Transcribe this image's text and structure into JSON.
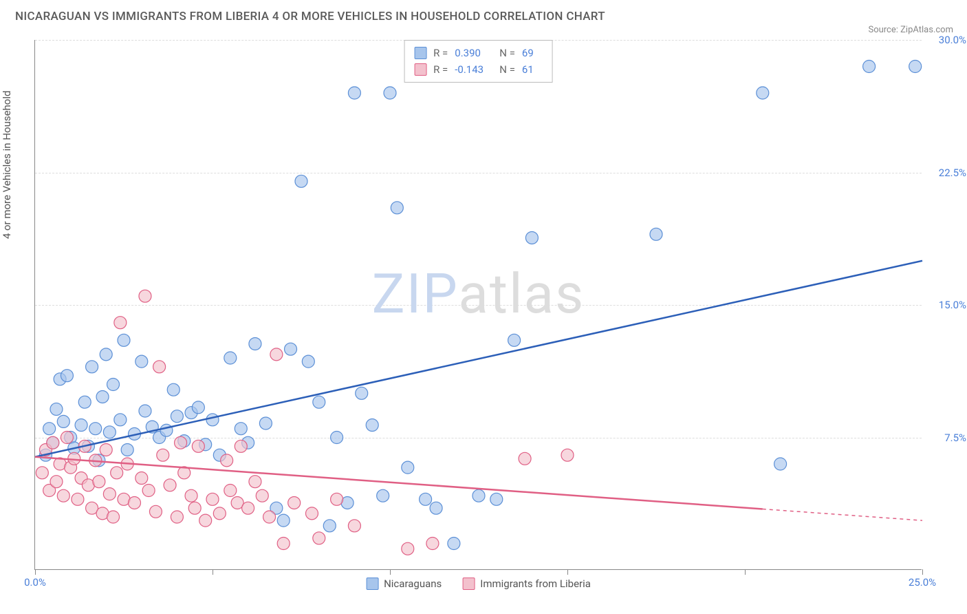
{
  "title": "NICARAGUAN VS IMMIGRANTS FROM LIBERIA 4 OR MORE VEHICLES IN HOUSEHOLD CORRELATION CHART",
  "source": "Source: ZipAtlas.com",
  "y_axis_label": "4 or more Vehicles in Household",
  "watermark": {
    "zip": "ZIP",
    "atlas": "atlas"
  },
  "chart": {
    "type": "scatter",
    "xlim": [
      0,
      25
    ],
    "ylim": [
      0,
      30
    ],
    "x_ticks": [
      0,
      5,
      10,
      15,
      20,
      25
    ],
    "x_tick_labels": {
      "0": "0.0%",
      "25": "25.0%"
    },
    "y_ticks": [
      7.5,
      15.0,
      22.5,
      30.0
    ],
    "y_tick_labels": [
      "7.5%",
      "15.0%",
      "22.5%",
      "30.0%"
    ],
    "grid_color": "#dddddd",
    "axis_color": "#888888",
    "background_color": "#ffffff",
    "x_label_color": "#4a7fd8",
    "y_label_color": "#4a7fd8",
    "marker_radius": 9,
    "marker_stroke_width": 1.2,
    "marker_fill_opacity": 0.35,
    "trend_line_width": 2.5
  },
  "series": [
    {
      "name": "Nicaraguans",
      "color_fill": "#a7c5ec",
      "color_stroke": "#5b8fd6",
      "color_line": "#2c5fb8",
      "R": "0.390",
      "N": "69",
      "trend": {
        "x1": 0.0,
        "y1": 6.4,
        "x2": 25.0,
        "y2": 17.5,
        "x_solid_end": 25.0
      },
      "points": [
        [
          0.3,
          6.5
        ],
        [
          0.4,
          8.0
        ],
        [
          0.5,
          7.2
        ],
        [
          0.6,
          9.1
        ],
        [
          0.7,
          10.8
        ],
        [
          0.8,
          8.4
        ],
        [
          0.9,
          11.0
        ],
        [
          1.0,
          7.5
        ],
        [
          1.1,
          6.9
        ],
        [
          1.3,
          8.2
        ],
        [
          1.4,
          9.5
        ],
        [
          1.5,
          7.0
        ],
        [
          1.6,
          11.5
        ],
        [
          1.7,
          8.0
        ],
        [
          1.8,
          6.2
        ],
        [
          1.9,
          9.8
        ],
        [
          2.0,
          12.2
        ],
        [
          2.1,
          7.8
        ],
        [
          2.2,
          10.5
        ],
        [
          2.4,
          8.5
        ],
        [
          2.5,
          13.0
        ],
        [
          2.6,
          6.8
        ],
        [
          2.8,
          7.7
        ],
        [
          3.0,
          11.8
        ],
        [
          3.1,
          9.0
        ],
        [
          3.3,
          8.1
        ],
        [
          3.5,
          7.5
        ],
        [
          3.7,
          7.9
        ],
        [
          3.9,
          10.2
        ],
        [
          4.0,
          8.7
        ],
        [
          4.2,
          7.3
        ],
        [
          4.4,
          8.9
        ],
        [
          4.6,
          9.2
        ],
        [
          4.8,
          7.1
        ],
        [
          5.0,
          8.5
        ],
        [
          5.2,
          6.5
        ],
        [
          5.5,
          12.0
        ],
        [
          5.8,
          8.0
        ],
        [
          6.0,
          7.2
        ],
        [
          6.2,
          12.8
        ],
        [
          6.5,
          8.3
        ],
        [
          6.8,
          3.5
        ],
        [
          7.0,
          2.8
        ],
        [
          7.2,
          12.5
        ],
        [
          7.5,
          22.0
        ],
        [
          7.7,
          11.8
        ],
        [
          8.0,
          9.5
        ],
        [
          8.3,
          2.5
        ],
        [
          8.5,
          7.5
        ],
        [
          8.8,
          3.8
        ],
        [
          9.0,
          27.0
        ],
        [
          9.2,
          10.0
        ],
        [
          9.5,
          8.2
        ],
        [
          9.8,
          4.2
        ],
        [
          10.0,
          27.0
        ],
        [
          10.2,
          20.5
        ],
        [
          10.5,
          5.8
        ],
        [
          11.0,
          4.0
        ],
        [
          11.3,
          3.5
        ],
        [
          11.8,
          1.5
        ],
        [
          12.5,
          4.2
        ],
        [
          13.0,
          4.0
        ],
        [
          13.5,
          13.0
        ],
        [
          14.0,
          18.8
        ],
        [
          17.5,
          19.0
        ],
        [
          20.5,
          27.0
        ],
        [
          21.0,
          6.0
        ],
        [
          23.5,
          28.5
        ],
        [
          24.8,
          28.5
        ]
      ]
    },
    {
      "name": "Immigrants from Liberia",
      "color_fill": "#f3c1cd",
      "color_stroke": "#e05f84",
      "color_line": "#e05f84",
      "R": "-0.143",
      "N": "61",
      "trend": {
        "x1": 0.0,
        "y1": 6.4,
        "x2": 25.0,
        "y2": 2.8,
        "x_solid_end": 20.5
      },
      "points": [
        [
          0.2,
          5.5
        ],
        [
          0.3,
          6.8
        ],
        [
          0.4,
          4.5
        ],
        [
          0.5,
          7.2
        ],
        [
          0.6,
          5.0
        ],
        [
          0.7,
          6.0
        ],
        [
          0.8,
          4.2
        ],
        [
          0.9,
          7.5
        ],
        [
          1.0,
          5.8
        ],
        [
          1.1,
          6.3
        ],
        [
          1.2,
          4.0
        ],
        [
          1.3,
          5.2
        ],
        [
          1.4,
          7.0
        ],
        [
          1.5,
          4.8
        ],
        [
          1.6,
          3.5
        ],
        [
          1.7,
          6.2
        ],
        [
          1.8,
          5.0
        ],
        [
          1.9,
          3.2
        ],
        [
          2.0,
          6.8
        ],
        [
          2.1,
          4.3
        ],
        [
          2.2,
          3.0
        ],
        [
          2.3,
          5.5
        ],
        [
          2.4,
          14.0
        ],
        [
          2.5,
          4.0
        ],
        [
          2.6,
          6.0
        ],
        [
          2.8,
          3.8
        ],
        [
          3.0,
          5.2
        ],
        [
          3.1,
          15.5
        ],
        [
          3.2,
          4.5
        ],
        [
          3.4,
          3.3
        ],
        [
          3.5,
          11.5
        ],
        [
          3.6,
          6.5
        ],
        [
          3.8,
          4.8
        ],
        [
          4.0,
          3.0
        ],
        [
          4.1,
          7.2
        ],
        [
          4.2,
          5.5
        ],
        [
          4.4,
          4.2
        ],
        [
          4.5,
          3.5
        ],
        [
          4.6,
          7.0
        ],
        [
          4.8,
          2.8
        ],
        [
          5.0,
          4.0
        ],
        [
          5.2,
          3.2
        ],
        [
          5.4,
          6.2
        ],
        [
          5.5,
          4.5
        ],
        [
          5.7,
          3.8
        ],
        [
          5.8,
          7.0
        ],
        [
          6.0,
          3.5
        ],
        [
          6.2,
          5.0
        ],
        [
          6.4,
          4.2
        ],
        [
          6.6,
          3.0
        ],
        [
          6.8,
          12.2
        ],
        [
          7.0,
          1.5
        ],
        [
          7.3,
          3.8
        ],
        [
          7.8,
          3.2
        ],
        [
          8.0,
          1.8
        ],
        [
          8.5,
          4.0
        ],
        [
          9.0,
          2.5
        ],
        [
          10.5,
          1.2
        ],
        [
          11.2,
          1.5
        ],
        [
          13.8,
          6.3
        ],
        [
          15.0,
          6.5
        ]
      ]
    }
  ],
  "stats_labels": {
    "R": "R =",
    "N": "N ="
  },
  "legend_bottom": [
    "Nicaraguans",
    "Immigrants from Liberia"
  ]
}
